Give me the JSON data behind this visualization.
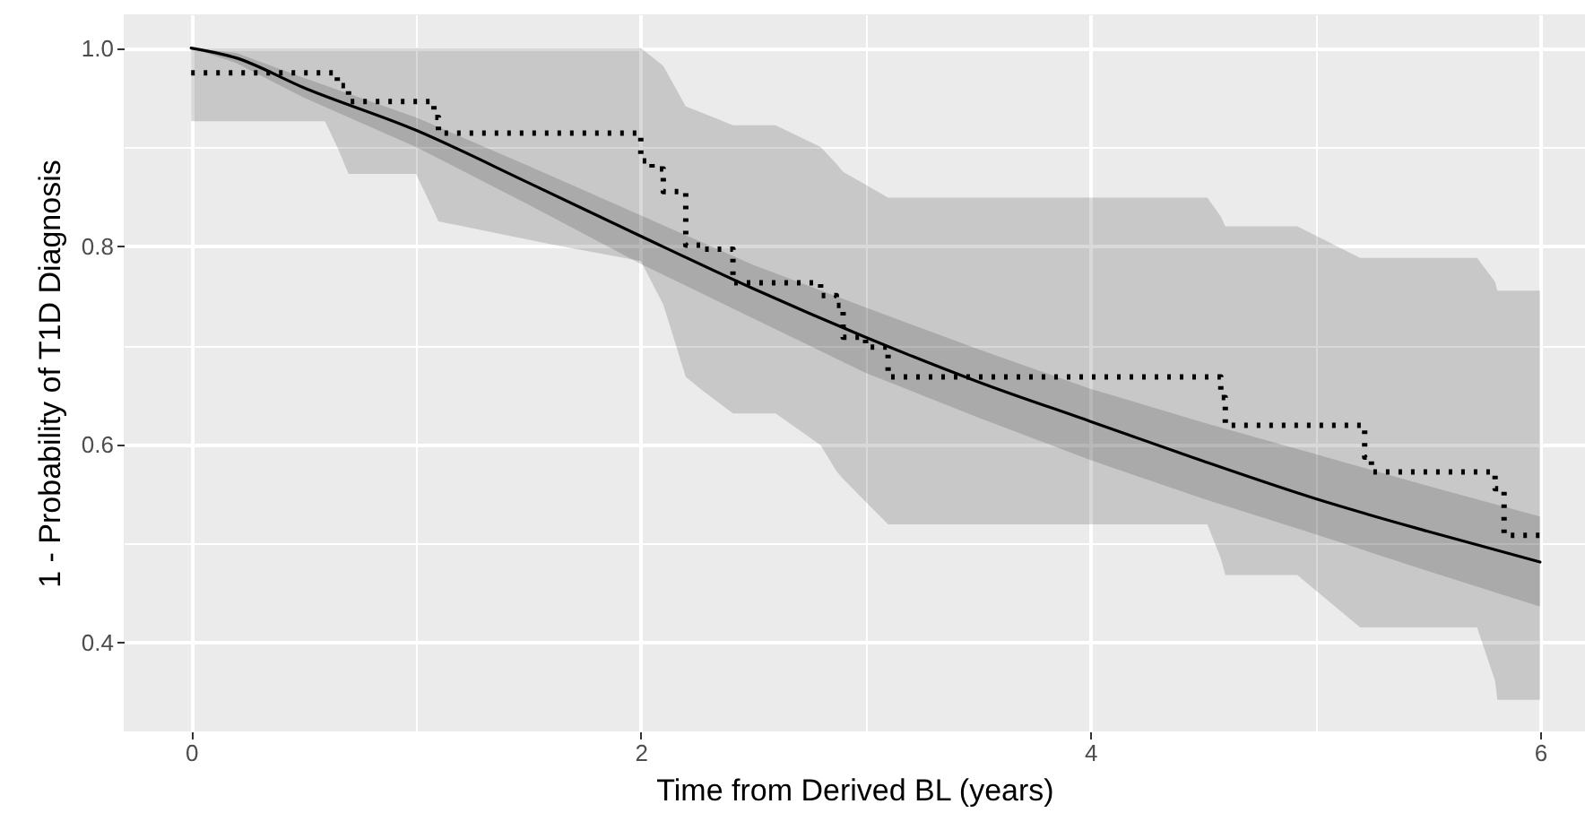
{
  "chart_data": {
    "type": "line",
    "xlabel": "Time from Derived BL (years)",
    "ylabel": "1 - Probability of T1D Diagnosis",
    "xlim": [
      -0.3,
      6.2
    ],
    "ylim": [
      0.31,
      1.034
    ],
    "xticks": [
      0,
      {
        "value": 1,
        "label": null
      },
      2,
      {
        "value": 3,
        "label": null
      },
      4,
      {
        "value": 5,
        "label": null
      },
      6
    ],
    "yticks": [
      0.4,
      {
        "value": 0.5,
        "label": null
      },
      0.6,
      {
        "value": 0.7,
        "label": null
      },
      0.8,
      {
        "value": 0.9,
        "label": null
      },
      {
        "value": 1,
        "label": "1.0"
      }
    ],
    "grid": true,
    "series": [
      {
        "type": "step",
        "color": "#000000",
        "line_style": "dotted",
        "x": [
          0,
          0.595,
          0.65,
          0.7,
          1.0,
          1.08,
          1.1,
          1.62,
          2.0,
          2.05,
          2.1,
          2.2,
          2.27,
          2.41,
          2.6,
          2.8,
          2.87,
          2.9,
          3.0,
          3.1,
          4.52,
          4.58,
          4.6,
          4.92,
          5.2,
          5.22,
          5.25,
          5.72,
          5.8,
          5.81,
          5.84,
          6.0
        ],
        "values": [
          0.975,
          0.975,
          0.962,
          0.946,
          0.946,
          0.93,
          0.914,
          0.914,
          0.886,
          0.878,
          0.855,
          0.801,
          0.797,
          0.763,
          0.763,
          0.75,
          0.74,
          0.708,
          0.698,
          0.668,
          0.668,
          0.647,
          0.619,
          0.619,
          0.619,
          0.587,
          0.572,
          0.572,
          0.555,
          0.555,
          0.508,
          0.508
        ],
        "upper": [
          1.0,
          1.0,
          1.0,
          1.0,
          1.0,
          1.0,
          1.0,
          1.0,
          1.0,
          0.991,
          0.982,
          0.941,
          0.935,
          0.922,
          0.922,
          0.9,
          0.883,
          0.875,
          0.862,
          0.849,
          0.849,
          0.83,
          0.82,
          0.82,
          0.788,
          0.788,
          0.788,
          0.788,
          0.764,
          0.755,
          0.755,
          0.755
        ],
        "lower": [
          0.926,
          0.926,
          0.9,
          0.873,
          0.873,
          0.835,
          0.825,
          0.801,
          0.785,
          0.763,
          0.741,
          0.668,
          0.655,
          0.631,
          0.631,
          0.599,
          0.573,
          0.565,
          0.542,
          0.519,
          0.519,
          0.485,
          0.468,
          0.468,
          0.415,
          0.415,
          0.415,
          0.415,
          0.361,
          0.342,
          0.342,
          0.342
        ]
      },
      {
        "type": "line",
        "color": "#000000",
        "line_style": "solid",
        "x": [
          0,
          0.2,
          0.5,
          1.0,
          1.5,
          2.0,
          2.5,
          3.0,
          3.5,
          4.0,
          4.5,
          5.0,
          5.5,
          6.0
        ],
        "values": [
          1.0,
          0.99,
          0.96,
          0.917,
          0.864,
          0.81,
          0.757,
          0.708,
          0.663,
          0.623,
          0.583,
          0.545,
          0.512,
          0.481
        ],
        "upper": [
          1.0,
          0.995,
          0.97,
          0.93,
          0.881,
          0.831,
          0.781,
          0.738,
          0.696,
          0.656,
          0.622,
          0.59,
          0.558,
          0.527
        ],
        "lower": [
          1.0,
          0.985,
          0.95,
          0.9,
          0.842,
          0.782,
          0.727,
          0.672,
          0.627,
          0.584,
          0.545,
          0.509,
          0.472,
          0.436
        ]
      }
    ]
  }
}
